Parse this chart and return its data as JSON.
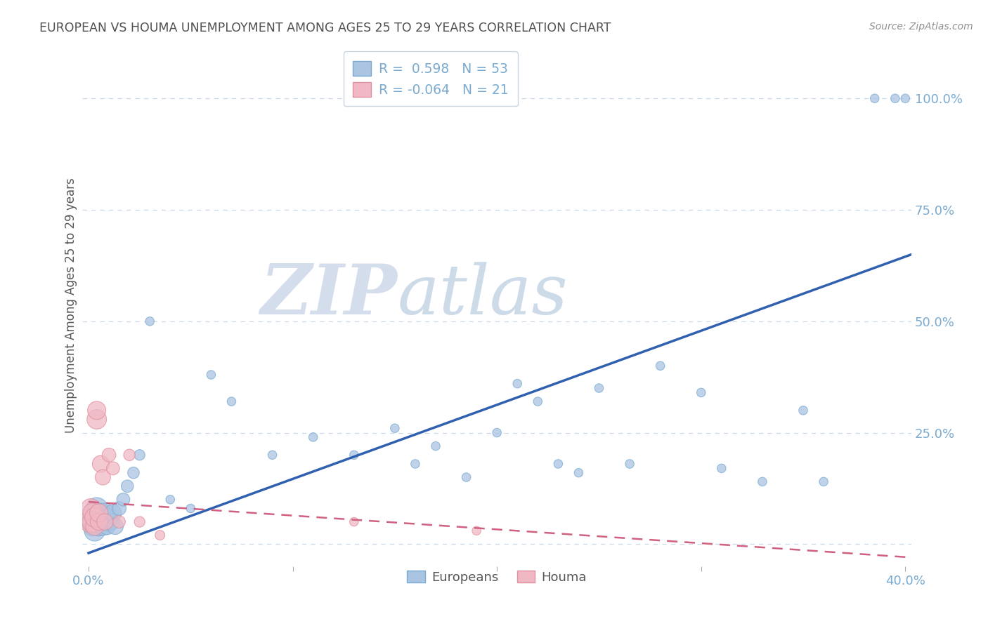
{
  "title": "EUROPEAN VS HOUMA UNEMPLOYMENT AMONG AGES 25 TO 29 YEARS CORRELATION CHART",
  "source": "Source: ZipAtlas.com",
  "ylabel": "Unemployment Among Ages 25 to 29 years",
  "watermark_zip": "ZIP",
  "watermark_atlas": "atlas",
  "blue_color": "#aac4e2",
  "blue_edge_color": "#7aaad0",
  "blue_line_color": "#3060b0",
  "pink_color": "#f0b8c4",
  "pink_edge_color": "#e090a0",
  "pink_line_color": "#d06080",
  "title_color": "#505050",
  "axis_color": "#7aaad0",
  "grid_color": "#c8d8ea",
  "background_color": "#ffffff",
  "xlim": [
    -0.003,
    0.403
  ],
  "ylim": [
    -0.05,
    1.12
  ],
  "x_ticks": [
    0.0,
    0.1,
    0.2,
    0.3,
    0.4
  ],
  "y_ticks_right": [
    0.25,
    0.5,
    0.75,
    1.0
  ],
  "blue_line_x0": 0.0,
  "blue_line_y0": -0.02,
  "blue_line_x1": 0.403,
  "blue_line_y1": 0.65,
  "pink_line_x0": 0.0,
  "pink_line_y0": 0.095,
  "pink_line_x1": 0.403,
  "pink_line_y1": -0.03,
  "blue_pts_x": [
    0.001,
    0.002,
    0.002,
    0.003,
    0.003,
    0.004,
    0.004,
    0.005,
    0.005,
    0.006,
    0.006,
    0.007,
    0.007,
    0.008,
    0.008,
    0.009,
    0.01,
    0.011,
    0.012,
    0.013,
    0.015,
    0.017,
    0.019,
    0.022,
    0.025,
    0.03,
    0.04,
    0.05,
    0.06,
    0.07,
    0.09,
    0.11,
    0.13,
    0.15,
    0.16,
    0.17,
    0.185,
    0.2,
    0.21,
    0.22,
    0.23,
    0.24,
    0.25,
    0.265,
    0.28,
    0.3,
    0.31,
    0.33,
    0.35,
    0.36,
    0.385,
    0.395,
    0.4
  ],
  "blue_pts_y": [
    0.05,
    0.04,
    0.07,
    0.03,
    0.06,
    0.05,
    0.08,
    0.04,
    0.06,
    0.05,
    0.07,
    0.04,
    0.06,
    0.05,
    0.07,
    0.04,
    0.06,
    0.05,
    0.07,
    0.04,
    0.08,
    0.1,
    0.13,
    0.16,
    0.2,
    0.5,
    0.1,
    0.08,
    0.38,
    0.32,
    0.2,
    0.24,
    0.2,
    0.26,
    0.18,
    0.22,
    0.15,
    0.25,
    0.36,
    0.32,
    0.18,
    0.16,
    0.35,
    0.18,
    0.4,
    0.34,
    0.17,
    0.14,
    0.3,
    0.14,
    1.0,
    1.0,
    1.0
  ],
  "blue_pts_s": [
    350,
    400,
    350,
    450,
    400,
    450,
    500,
    400,
    450,
    350,
    400,
    350,
    400,
    350,
    400,
    300,
    350,
    300,
    300,
    280,
    200,
    180,
    160,
    140,
    120,
    80,
    80,
    80,
    80,
    80,
    80,
    80,
    80,
    80,
    80,
    80,
    80,
    80,
    80,
    80,
    80,
    80,
    80,
    80,
    80,
    80,
    80,
    80,
    80,
    80,
    80,
    80,
    80
  ],
  "pink_pts_x": [
    0.001,
    0.001,
    0.002,
    0.002,
    0.003,
    0.003,
    0.004,
    0.004,
    0.005,
    0.005,
    0.006,
    0.007,
    0.008,
    0.01,
    0.012,
    0.015,
    0.02,
    0.025,
    0.035,
    0.13,
    0.19
  ],
  "pink_pts_y": [
    0.05,
    0.08,
    0.05,
    0.07,
    0.04,
    0.06,
    0.28,
    0.3,
    0.05,
    0.07,
    0.18,
    0.15,
    0.05,
    0.2,
    0.17,
    0.05,
    0.2,
    0.05,
    0.02,
    0.05,
    0.03
  ],
  "pink_pts_s": [
    500,
    400,
    450,
    400,
    350,
    400,
    400,
    350,
    300,
    350,
    300,
    250,
    280,
    200,
    180,
    160,
    140,
    120,
    100,
    80,
    80
  ]
}
